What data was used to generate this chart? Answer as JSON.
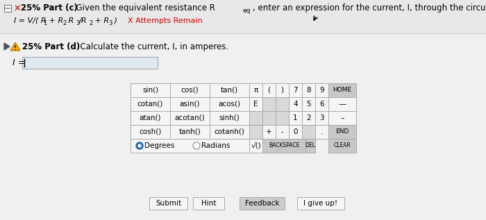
{
  "bg_color": "#f0f0f0",
  "top_bar_color": "#e8e8e8",
  "part_c_bold": "25% Part (c)",
  "part_c_rest": "  Given the equivalent resistance R",
  "part_c_sub": "eq",
  "part_c_end": ", enter an expression for the current, I, through the circuit.",
  "answer_text": "I = V/( R",
  "answer_sub1": "1",
  "answer_mid": " + R",
  "answer_sub2": "2",
  "answer_mid2": " R",
  "answer_sub3": "3",
  "answer_mid3": "/R",
  "answer_sub4": "2",
  "answer_mid4": " + R",
  "answer_sub5": "3",
  "answer_end": " )",
  "attempts_text": "  X Attempts Remain",
  "part_d_bold": "25% Part (d)",
  "part_d_rest": "  Calculate the current, I, in amperes.",
  "input_label": "I =",
  "trig_buttons": [
    [
      "sin()",
      "cos()",
      "tan()"
    ],
    [
      "cotan()",
      "asin()",
      "acos()"
    ],
    [
      "atan()",
      "acotan()",
      "sinh()"
    ],
    [
      "cosh()",
      "tanh()",
      "cotanh()"
    ]
  ],
  "num_row1": [
    "π",
    "(",
    ")",
    "7",
    "8",
    "9"
  ],
  "num_row2": [
    "E",
    "",
    "",
    "4",
    "5",
    "6"
  ],
  "num_row3": [
    "",
    "",
    "",
    "1",
    "2",
    "3"
  ],
  "num_row4": [
    "",
    "+",
    "-",
    "0",
    "",
    "."
  ],
  "right_col1": "HOME",
  "right_col2": "—",
  "right_col3": "–",
  "right_col4": "END",
  "sqrt_label": "√()",
  "backspace_label": "BACKSPACE",
  "del_label": "DEL",
  "clear_label": "CLEAR",
  "degrees_label": "Degrees",
  "radians_label": "Radians",
  "action_buttons": [
    "Submit",
    "Hint",
    "Feedback",
    "I give up!"
  ],
  "action_btn_bgs": [
    "#f5f5f5",
    "#f5f5f5",
    "#cccccc",
    "#f5f5f5"
  ],
  "cell_bg": "#f5f5f5",
  "cell_border": "#aaaaaa",
  "dark_cell_bg": "#d8d8d8",
  "gray_cell_bg": "#c8c8c8",
  "radio_fill": "#2266bb"
}
